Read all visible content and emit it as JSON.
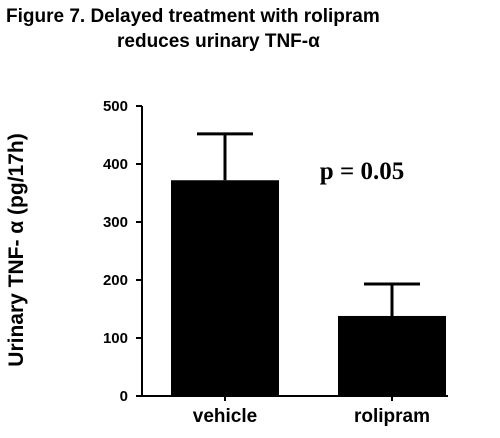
{
  "chart_data": {
    "type": "bar",
    "title": "Figure 7. Delayed treatment with rolipram reduces urinary TNF-α",
    "title_lines": [
      "Figure 7. Delayed treatment with rolipram",
      "reduces urinary TNF-α"
    ],
    "xlabel": "",
    "ylabel": "Urinary TNF- α (pg/17h)",
    "categories": [
      "vehicle",
      "rolipram"
    ],
    "series": [
      {
        "values": [
          372,
          138
        ],
        "error_upper": [
          80,
          55
        ]
      }
    ],
    "ylim": [
      0,
      500
    ],
    "yticks": [
      0,
      100,
      200,
      300,
      400,
      500
    ],
    "grid": false,
    "legend": "none",
    "bar_color": "#000000",
    "annotations": [
      {
        "text": "p = 0.05"
      }
    ]
  }
}
